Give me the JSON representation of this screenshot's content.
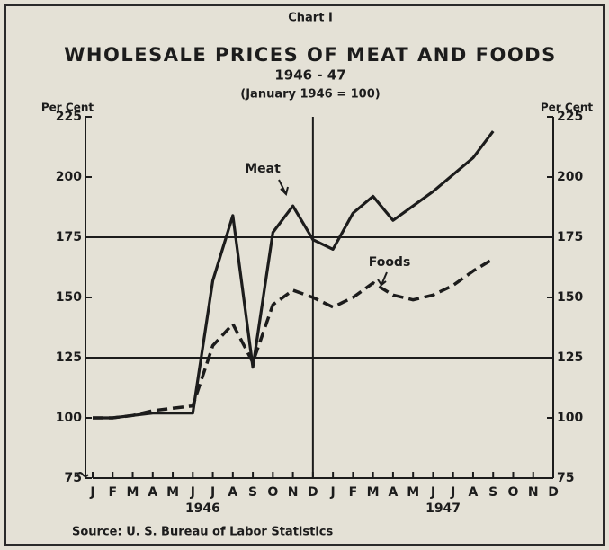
{
  "chart_data": {
    "type": "line",
    "chart_number": "Chart I",
    "title": "WHOLESALE PRICES OF MEAT AND FOODS",
    "subtitle": "1946 - 47",
    "base_note": "(January 1946 = 100)",
    "y_label": "Per Cent",
    "y2_label": "Per Cent",
    "source": "Source: U. S. Bureau of Labor Statistics",
    "categories": [
      "J",
      "F",
      "M",
      "A",
      "M",
      "J",
      "J",
      "A",
      "S",
      "O",
      "N",
      "D",
      "J",
      "F",
      "M",
      "A",
      "M",
      "J",
      "J",
      "A",
      "S",
      "O",
      "N",
      "D"
    ],
    "year_labels": [
      "1946",
      "1947"
    ],
    "series": [
      {
        "name": "Meat",
        "color": "#1c1c1c",
        "dashed": false,
        "values": [
          100,
          100,
          101,
          102,
          102,
          102,
          157,
          184,
          121,
          177,
          188,
          174,
          170,
          185,
          192,
          182,
          188,
          194,
          201,
          208,
          219,
          null,
          null,
          null
        ]
      },
      {
        "name": "Foods",
        "color": "#1c1c1c",
        "dashed": true,
        "values": [
          100,
          100,
          101,
          103,
          104,
          105,
          130,
          139,
          123,
          147,
          153,
          150,
          146,
          150,
          156,
          151,
          149,
          151,
          155,
          161,
          166,
          null,
          null,
          null
        ]
      }
    ],
    "ylim": [
      75,
      225
    ],
    "yticks": [
      75,
      100,
      125,
      150,
      175,
      200,
      225
    ],
    "y2lim": [
      75,
      225
    ],
    "y2ticks": [
      75,
      100,
      125,
      150,
      175,
      200,
      225
    ],
    "grid_values": [
      125,
      175
    ]
  }
}
